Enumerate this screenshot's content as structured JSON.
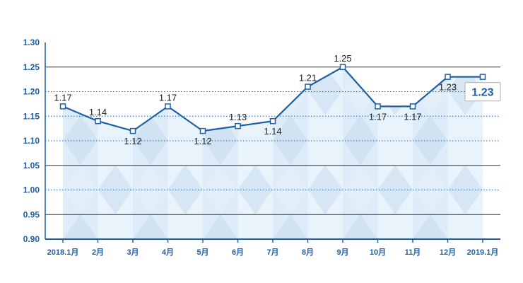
{
  "chart_data": {
    "type": "line",
    "title": "",
    "xlabel": "",
    "ylabel": "",
    "categories": [
      "2018.1月",
      "2月",
      "3月",
      "4月",
      "5月",
      "6月",
      "7月",
      "8月",
      "9月",
      "10月",
      "11月",
      "12月",
      "2019.1月"
    ],
    "series": [
      {
        "values": [
          1.17,
          1.14,
          1.12,
          1.17,
          1.12,
          1.13,
          1.14,
          1.21,
          1.25,
          1.17,
          1.17,
          1.23,
          1.23
        ],
        "labels": [
          "1.17",
          "1.14",
          "1.12",
          "1.17",
          "1.12",
          "1.13",
          "1.14",
          "1.21",
          "1.25",
          "1.17",
          "1.17",
          "1.23",
          ""
        ]
      }
    ],
    "ylim": [
      0.9,
      1.3
    ],
    "yticks": [
      "0.90",
      "0.95",
      "1.00",
      "1.05",
      "1.10",
      "1.15",
      "1.20",
      "1.25",
      "1.30"
    ],
    "grid": {
      "solid": [
        "0.95",
        "1.05",
        "1.25"
      ],
      "dotted": [
        "1.00",
        "1.10",
        "1.15",
        "1.20"
      ]
    },
    "callout": "1.23",
    "colors": {
      "line": "#1f5fa5",
      "axis": "#1f5fa5",
      "grid_solid": "#333333",
      "grid_dotted": "#1f5fa5",
      "fill_light": "#e8f3fb",
      "fill_mid": "#d3e6f6",
      "fill_dark": "#c3d6ee",
      "text": "#222222"
    }
  }
}
